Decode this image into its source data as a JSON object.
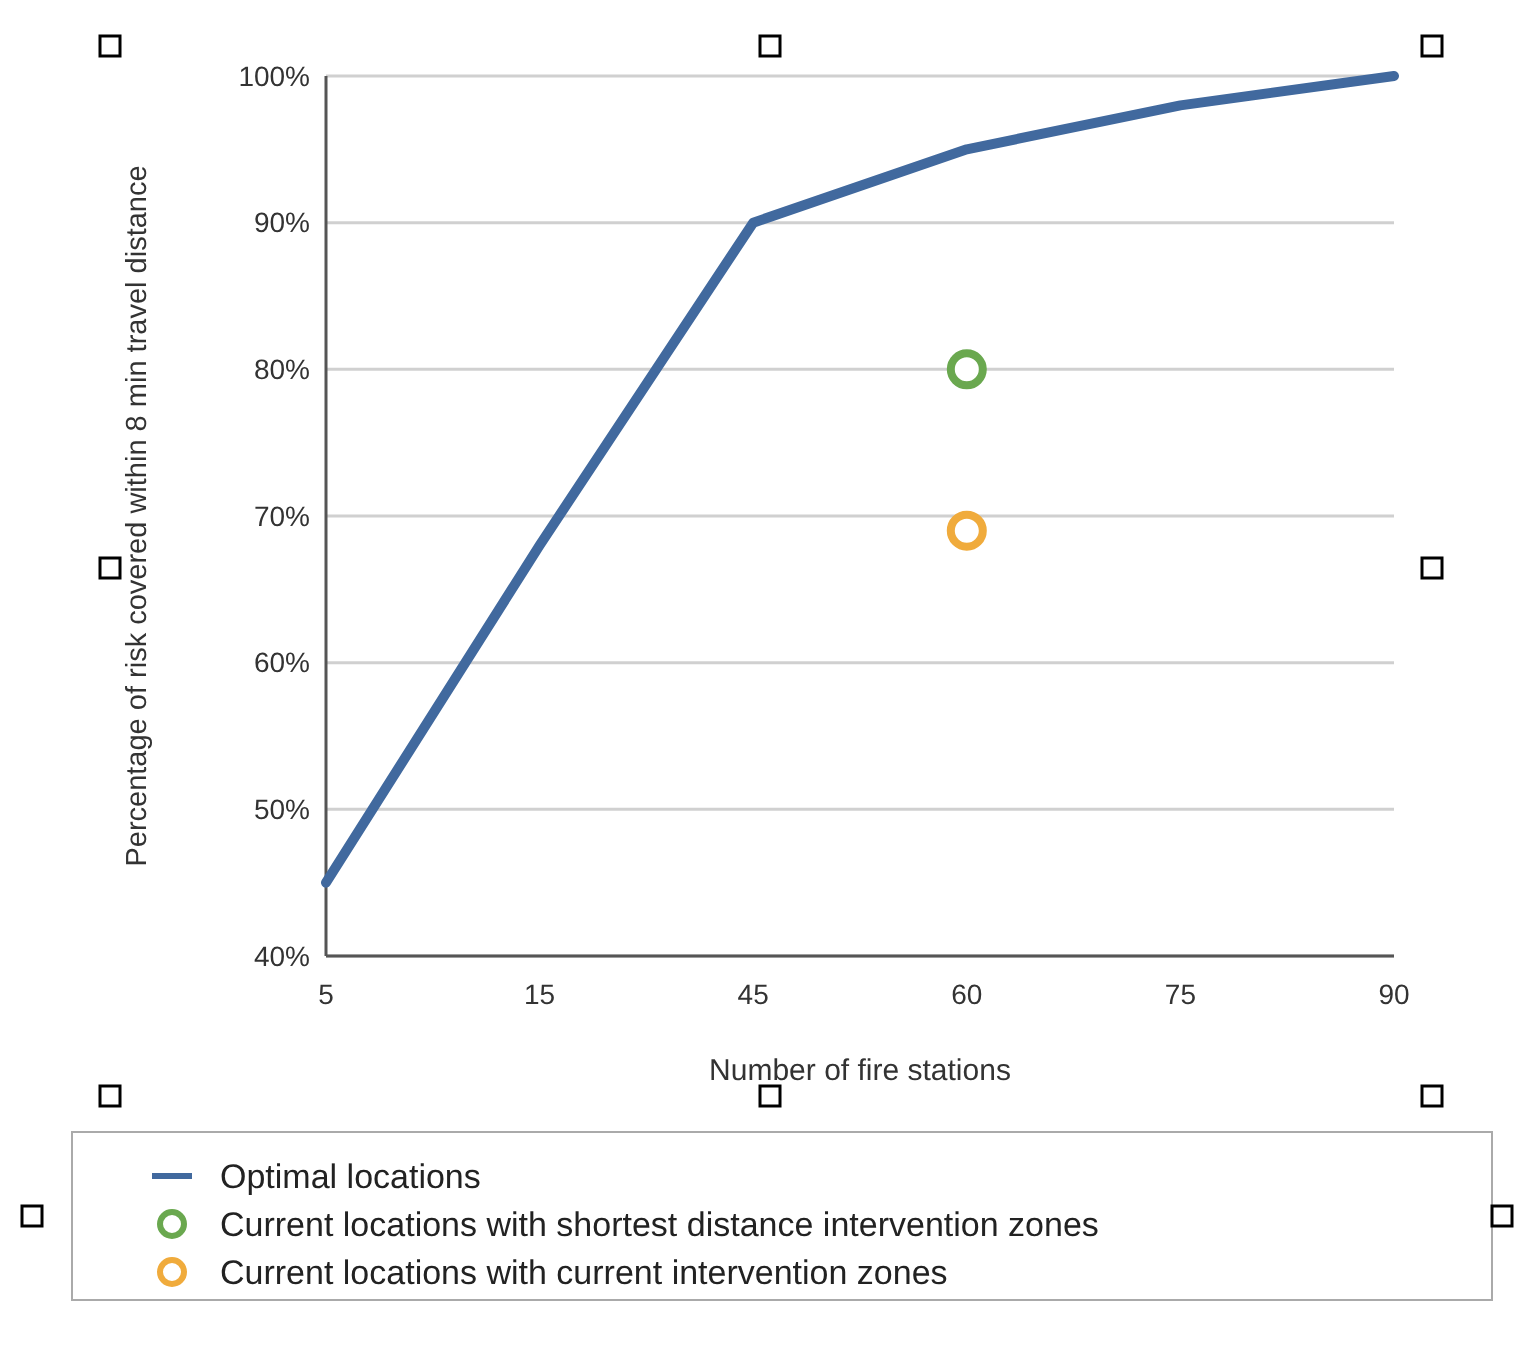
{
  "chart_data": {
    "type": "line",
    "xlabel": "Number of fire stations",
    "ylabel": "Percentage of risk covered within 8 min travel distance",
    "categories": [
      "5",
      "15",
      "45",
      "60",
      "75",
      "90"
    ],
    "series": [
      {
        "name": "Optimal locations",
        "color": "#41699e",
        "values": [
          45,
          68,
          90,
          95,
          98,
          100
        ],
        "marker": "none"
      },
      {
        "name": "Current locations with shortest distance intervention zones",
        "type": "scatter",
        "color": "#6aa84f",
        "x": [
          "60"
        ],
        "values": [
          80
        ],
        "marker": "circle"
      },
      {
        "name": "Current locations with current intervention zones",
        "type": "scatter",
        "color": "#f0ab3c",
        "x": [
          "60"
        ],
        "values": [
          69
        ],
        "marker": "circle"
      }
    ],
    "ylim": [
      40,
      100
    ],
    "yticks": [
      {
        "value": 40,
        "label": "40%"
      },
      {
        "value": 50,
        "label": "50%"
      },
      {
        "value": 60,
        "label": "60%"
      },
      {
        "value": 70,
        "label": "70%"
      },
      {
        "value": 80,
        "label": "80%"
      },
      {
        "value": 90,
        "label": "90%"
      },
      {
        "value": 100,
        "label": "100%"
      }
    ],
    "grid": "y",
    "legend": "bottom"
  }
}
